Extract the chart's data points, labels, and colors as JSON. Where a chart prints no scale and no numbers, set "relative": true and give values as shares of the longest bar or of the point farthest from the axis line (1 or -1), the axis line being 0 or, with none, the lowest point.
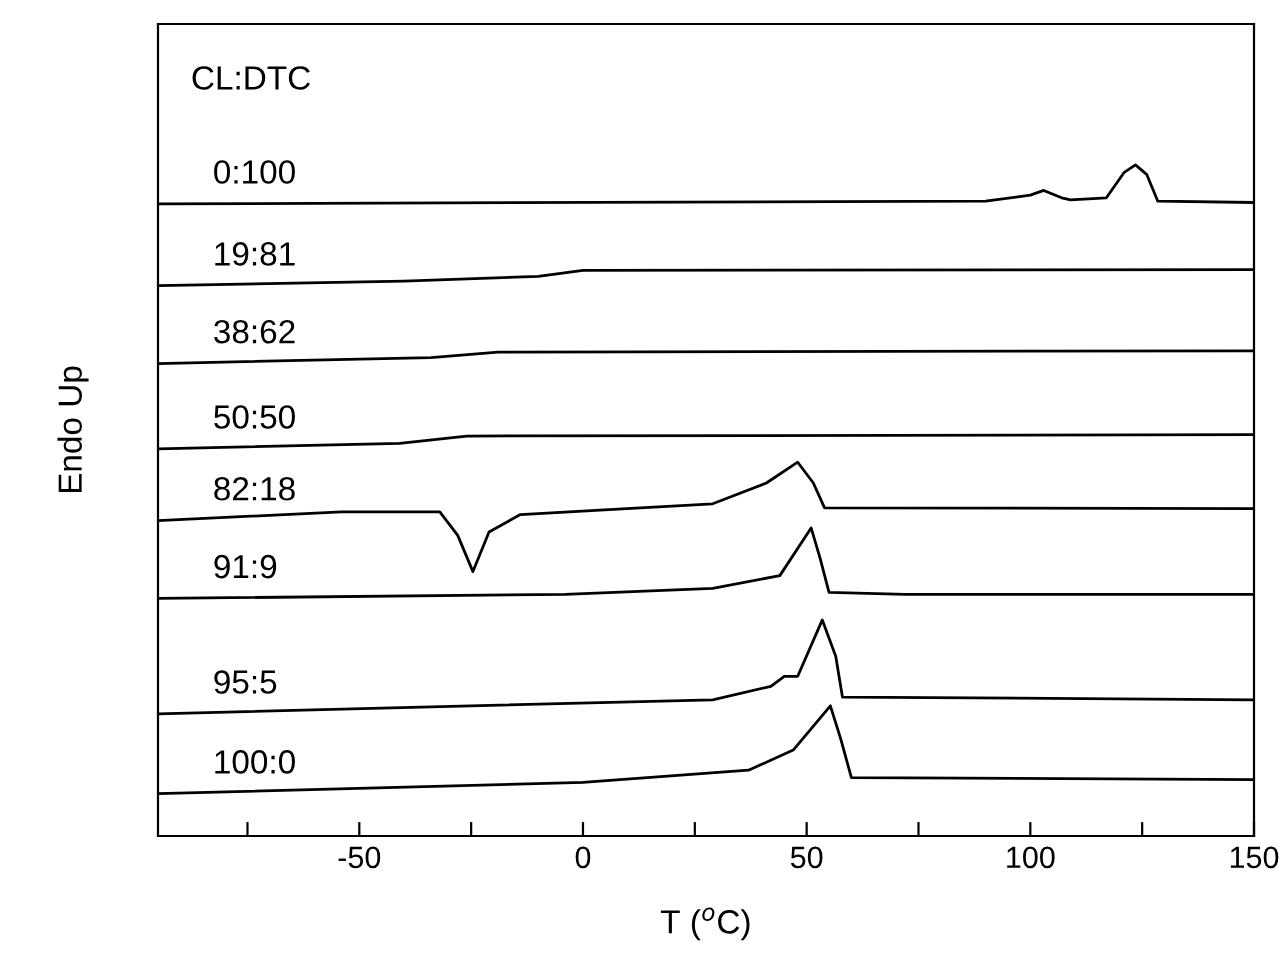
{
  "chart_data": {
    "type": "line",
    "relative": true,
    "xlabel": "T ($^{o}$C)",
    "ylabel": "Endo Up",
    "annotations": [
      "CL:DTC"
    ],
    "xlim": [
      -95,
      150
    ],
    "xticks": [
      {
        "value": -75,
        "label": null
      },
      -50,
      {
        "value": -25,
        "label": null
      },
      0,
      {
        "value": 25,
        "label": null
      },
      50,
      {
        "value": 75,
        "label": null
      },
      100,
      {
        "value": 125,
        "label": null
      },
      150
    ],
    "tick_labels": "x",
    "grid": false,
    "legend": false,
    "marker": "none",
    "line_style": "solid",
    "series": [
      {
        "name": "0:100",
        "color": "#000000",
        "x": [
          -95,
          90,
          100,
          103,
          107,
          109,
          117,
          121,
          123.5,
          126,
          128.5,
          150
        ],
        "values": [
          0.942,
          0.946,
          0.955,
          0.962,
          0.951,
          0.948,
          0.951,
          0.989,
          1.0,
          0.986,
          0.946,
          0.944
        ]
      },
      {
        "name": "19:81",
        "color": "#000000",
        "x": [
          -95,
          -40,
          -10,
          0,
          150
        ],
        "values": [
          0.82,
          0.827,
          0.834,
          0.843,
          0.844
        ]
      },
      {
        "name": "38:62",
        "color": "#000000",
        "x": [
          -95,
          -34,
          -19,
          150
        ],
        "values": [
          0.704,
          0.713,
          0.721,
          0.723
        ]
      },
      {
        "name": "50:50",
        "color": "#000000",
        "x": [
          -95,
          -41,
          -26,
          150
        ],
        "values": [
          0.577,
          0.585,
          0.596,
          0.598
        ]
      },
      {
        "name": "82:18",
        "color": "#000000",
        "x": [
          -95,
          -54,
          -32,
          -28,
          -24.6,
          -21,
          -14,
          29,
          41,
          48,
          51.5,
          54,
          150
        ],
        "values": [
          0.47,
          0.483,
          0.483,
          0.448,
          0.394,
          0.453,
          0.479,
          0.495,
          0.526,
          0.557,
          0.526,
          0.489,
          0.488
        ]
      },
      {
        "name": "91:9",
        "color": "#000000",
        "x": [
          -95,
          -4,
          29,
          44,
          51,
          53,
          55,
          72,
          150
        ],
        "values": [
          0.354,
          0.36,
          0.369,
          0.388,
          0.459,
          0.414,
          0.363,
          0.36,
          0.36
        ]
      },
      {
        "name": "95:5",
        "color": "#000000",
        "x": [
          -95,
          29,
          42,
          45,
          48,
          53.5,
          56.5,
          58,
          150
        ],
        "values": [
          0.182,
          0.203,
          0.223,
          0.238,
          0.238,
          0.322,
          0.268,
          0.207,
          0.203
        ]
      },
      {
        "name": "100:0",
        "color": "#000000",
        "x": [
          -95,
          0,
          37,
          47,
          55.3,
          57.6,
          60,
          150
        ],
        "values": [
          0.063,
          0.08,
          0.098,
          0.128,
          0.194,
          0.145,
          0.087,
          0.084
        ]
      }
    ]
  }
}
